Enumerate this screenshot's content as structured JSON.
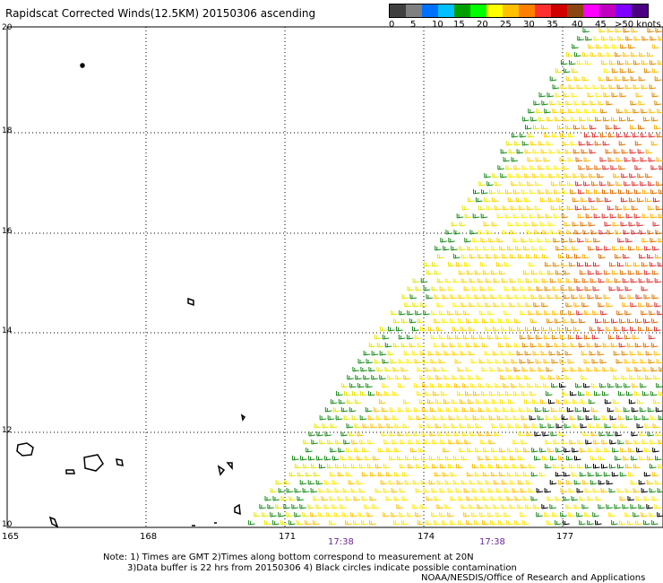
{
  "title": "Rapidscat Corrected Winds(12.5KM) 20150306 ascending",
  "legend": {
    "colors": [
      "#404040",
      "#808080",
      "#0070ff",
      "#00c0ff",
      "#00a000",
      "#00ff00",
      "#ffff00",
      "#ffc000",
      "#ff8000",
      "#ff3030",
      "#d00000",
      "#8b4513",
      "#ff00ff",
      "#c000c0",
      "#8000ff",
      "#4b0082"
    ],
    "labels": [
      "0",
      "5",
      "10",
      "15",
      "20",
      "25",
      "30",
      "35",
      "40",
      "45",
      ">50 knots"
    ]
  },
  "axes": {
    "lat_labels": [
      "20",
      "18",
      "16",
      "14",
      "12",
      "10"
    ],
    "lon_labels": [
      "165",
      "168",
      "171",
      "174",
      "177"
    ]
  },
  "time_labels": [
    "17:38",
    "17:38"
  ],
  "notes": [
    "Note: 1) Times are GMT 2)Times along bottom correspond to measurement at 20N",
    "3)Data buffer is 22 hrs from 20150306 4) Black circles indicate possible contamination"
  ],
  "credit": "NOAA/NESDIS/Office of Research and Applications"
}
